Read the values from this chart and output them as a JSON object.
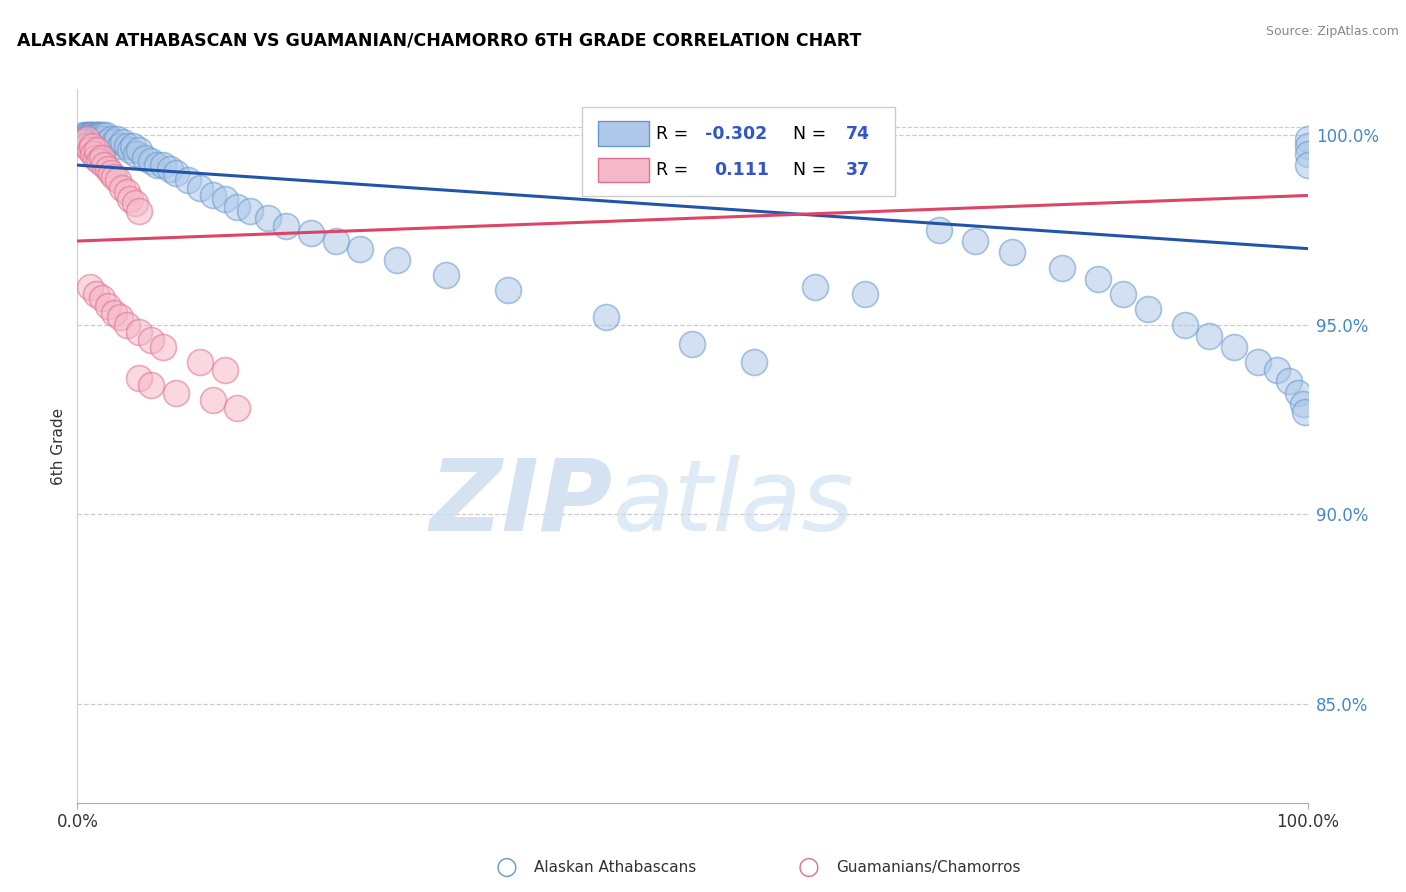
{
  "title": "ALASKAN ATHABASCAN VS GUAMANIAN/CHAMORRO 6TH GRADE CORRELATION CHART",
  "source": "Source: ZipAtlas.com",
  "ylabel": "6th Grade",
  "blue_label": "Alaskan Athabascans",
  "pink_label": "Guamanians/Chamorros",
  "blue_R": -0.302,
  "blue_N": 74,
  "pink_R": 0.111,
  "pink_N": 37,
  "blue_fill": "#adc8e8",
  "blue_edge": "#6699cc",
  "pink_fill": "#f5b8c8",
  "pink_edge": "#e07090",
  "blue_line_color": "#2255aa",
  "pink_line_color": "#dd4466",
  "ytick_labels": [
    "85.0%",
    "90.0%",
    "95.0%",
    "100.0%"
  ],
  "ytick_values": [
    0.85,
    0.9,
    0.95,
    1.0
  ],
  "xlim": [
    0.0,
    1.0
  ],
  "ylim": [
    0.824,
    1.012
  ],
  "blue_trend_x0": 0.0,
  "blue_trend_y0": 0.992,
  "blue_trend_x1": 1.0,
  "blue_trend_y1": 0.97,
  "pink_trend_x0": 0.0,
  "pink_trend_y0": 0.972,
  "pink_trend_x1": 1.0,
  "pink_trend_y1": 0.984,
  "blue_x": [
    0.005,
    0.007,
    0.008,
    0.009,
    0.01,
    0.011,
    0.012,
    0.013,
    0.014,
    0.015,
    0.016,
    0.017,
    0.018,
    0.019,
    0.02,
    0.021,
    0.022,
    0.023,
    0.025,
    0.027,
    0.03,
    0.032,
    0.035,
    0.037,
    0.04,
    0.043,
    0.045,
    0.048,
    0.05,
    0.055,
    0.06,
    0.065,
    0.07,
    0.075,
    0.08,
    0.09,
    0.1,
    0.11,
    0.12,
    0.13,
    0.14,
    0.155,
    0.17,
    0.19,
    0.21,
    0.23,
    0.26,
    0.3,
    0.35,
    0.43,
    0.5,
    0.55,
    0.6,
    0.64,
    0.7,
    0.73,
    0.76,
    0.8,
    0.83,
    0.85,
    0.87,
    0.9,
    0.92,
    0.94,
    0.96,
    0.975,
    0.985,
    0.992,
    0.996,
    0.998,
    1.0,
    1.0,
    1.0,
    1.0
  ],
  "blue_y": [
    1.0,
    1.0,
    1.0,
    1.0,
    1.0,
    1.0,
    1.0,
    1.0,
    0.999,
    1.0,
    1.0,
    1.0,
    1.0,
    1.0,
    0.999,
    1.0,
    0.999,
    1.0,
    0.998,
    0.999,
    0.998,
    0.999,
    0.997,
    0.998,
    0.997,
    0.996,
    0.997,
    0.995,
    0.996,
    0.994,
    0.993,
    0.992,
    0.992,
    0.991,
    0.99,
    0.988,
    0.986,
    0.984,
    0.983,
    0.981,
    0.98,
    0.978,
    0.976,
    0.974,
    0.972,
    0.97,
    0.967,
    0.963,
    0.959,
    0.952,
    0.945,
    0.94,
    0.96,
    0.958,
    0.975,
    0.972,
    0.969,
    0.965,
    0.962,
    0.958,
    0.954,
    0.95,
    0.947,
    0.944,
    0.94,
    0.938,
    0.935,
    0.932,
    0.929,
    0.927,
    0.999,
    0.997,
    0.995,
    0.992
  ],
  "pink_x": [
    0.005,
    0.007,
    0.008,
    0.01,
    0.012,
    0.013,
    0.015,
    0.016,
    0.018,
    0.02,
    0.022,
    0.025,
    0.027,
    0.03,
    0.033,
    0.036,
    0.04,
    0.043,
    0.047,
    0.05,
    0.01,
    0.015,
    0.02,
    0.025,
    0.03,
    0.035,
    0.04,
    0.05,
    0.06,
    0.07,
    0.1,
    0.12,
    0.05,
    0.06,
    0.08,
    0.11,
    0.13
  ],
  "pink_y": [
    0.998,
    0.997,
    0.999,
    0.996,
    0.997,
    0.995,
    0.994,
    0.996,
    0.993,
    0.994,
    0.992,
    0.991,
    0.99,
    0.989,
    0.988,
    0.986,
    0.985,
    0.983,
    0.982,
    0.98,
    0.96,
    0.958,
    0.957,
    0.955,
    0.953,
    0.952,
    0.95,
    0.948,
    0.946,
    0.944,
    0.94,
    0.938,
    0.936,
    0.934,
    0.932,
    0.93,
    0.928
  ]
}
